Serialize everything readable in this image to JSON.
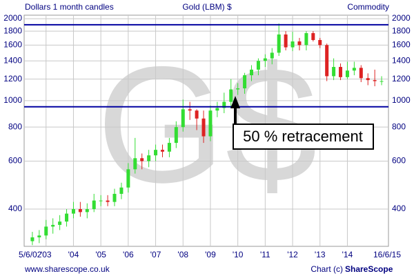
{
  "chart_data": {
    "type": "candlestick",
    "title": "Gold (LBM) $",
    "subtitle": "Dollars 1 month candles",
    "category": "Commodity",
    "source": "www.sharescope.co.uk",
    "credit": "Chart (c)",
    "brand": "ShareScope",
    "watermark": "G$",
    "annotation": "50 % retracement",
    "log_scale": true,
    "grid": true,
    "up_color": "#33dd33",
    "down_color": "#dd2222",
    "hlines": [
      1900,
      950
    ],
    "hline_color": "#0000a0",
    "xlim": [
      2002.2,
      2015.5
    ],
    "xticks": [
      {
        "value": 2002.42,
        "label": "5/6/02"
      },
      {
        "value": 2003,
        "label": "'03"
      },
      {
        "value": 2004,
        "label": "'04"
      },
      {
        "value": 2005,
        "label": "'05"
      },
      {
        "value": 2006,
        "label": "'06"
      },
      {
        "value": 2007,
        "label": "'07"
      },
      {
        "value": 2008,
        "label": "'08"
      },
      {
        "value": 2009,
        "label": "'09"
      },
      {
        "value": 2010,
        "label": "'10"
      },
      {
        "value": 2011,
        "label": "'11"
      },
      {
        "value": 2012,
        "label": "'12"
      },
      {
        "value": 2013,
        "label": "'13"
      },
      {
        "value": 2014,
        "label": "'14"
      },
      {
        "value": 2015.45,
        "label": "16/6/15"
      }
    ],
    "ylim": [
      292,
      2060
    ],
    "yticks": [
      400,
      600,
      800,
      1000,
      1200,
      1400,
      1600,
      1800,
      2000
    ],
    "x": [
      2002.5,
      2002.75,
      2003,
      2003.25,
      2003.5,
      2003.75,
      2004,
      2004.25,
      2004.5,
      2004.75,
      2005,
      2005.25,
      2005.5,
      2005.75,
      2006,
      2006.25,
      2006.5,
      2006.75,
      2007,
      2007.25,
      2007.5,
      2007.75,
      2008,
      2008.25,
      2008.5,
      2008.75,
      2009,
      2009.25,
      2009.5,
      2009.75,
      2010,
      2010.25,
      2010.5,
      2010.75,
      2011,
      2011.25,
      2011.5,
      2011.75,
      2012,
      2012.25,
      2012.5,
      2012.75,
      2013,
      2013.25,
      2013.5,
      2013.75,
      2014,
      2014.25,
      2014.5,
      2014.75,
      2015,
      2015.25
    ],
    "open": [
      305,
      315,
      320,
      345,
      350,
      360,
      385,
      400,
      390,
      400,
      430,
      430,
      425,
      455,
      480,
      560,
      615,
      600,
      630,
      660,
      650,
      700,
      800,
      930,
      920,
      860,
      740,
      920,
      940,
      990,
      1100,
      1110,
      1240,
      1300,
      1400,
      1430,
      1500,
      1750,
      1570,
      1650,
      1600,
      1770,
      1670,
      1600,
      1230,
      1330,
      1220,
      1290,
      1320,
      1210,
      1190,
      1180
    ],
    "high": [
      330,
      335,
      365,
      370,
      380,
      400,
      425,
      425,
      420,
      455,
      450,
      450,
      475,
      500,
      590,
      730,
      640,
      660,
      690,
      690,
      730,
      840,
      1010,
      990,
      930,
      920,
      960,
      990,
      1070,
      1200,
      1160,
      1265,
      1350,
      1430,
      1480,
      1560,
      1920,
      1800,
      1790,
      1700,
      1800,
      1800,
      1700,
      1620,
      1430,
      1370,
      1390,
      1390,
      1350,
      1260,
      1300,
      1230
    ],
    "low": [
      295,
      300,
      310,
      325,
      335,
      345,
      370,
      375,
      370,
      390,
      410,
      410,
      410,
      435,
      460,
      540,
      560,
      570,
      600,
      620,
      620,
      670,
      770,
      850,
      780,
      700,
      710,
      870,
      900,
      940,
      1050,
      1060,
      1180,
      1240,
      1330,
      1360,
      1460,
      1530,
      1520,
      1530,
      1530,
      1650,
      1560,
      1180,
      1190,
      1190,
      1200,
      1240,
      1170,
      1140,
      1130,
      1140
    ],
    "close": [
      315,
      320,
      345,
      350,
      360,
      385,
      400,
      390,
      400,
      430,
      430,
      425,
      455,
      480,
      560,
      615,
      600,
      630,
      660,
      650,
      700,
      800,
      930,
      920,
      860,
      740,
      920,
      940,
      990,
      1100,
      1110,
      1240,
      1300,
      1400,
      1430,
      1500,
      1750,
      1570,
      1650,
      1600,
      1770,
      1670,
      1600,
      1230,
      1330,
      1220,
      1290,
      1320,
      1210,
      1190,
      1180,
      1180
    ]
  }
}
